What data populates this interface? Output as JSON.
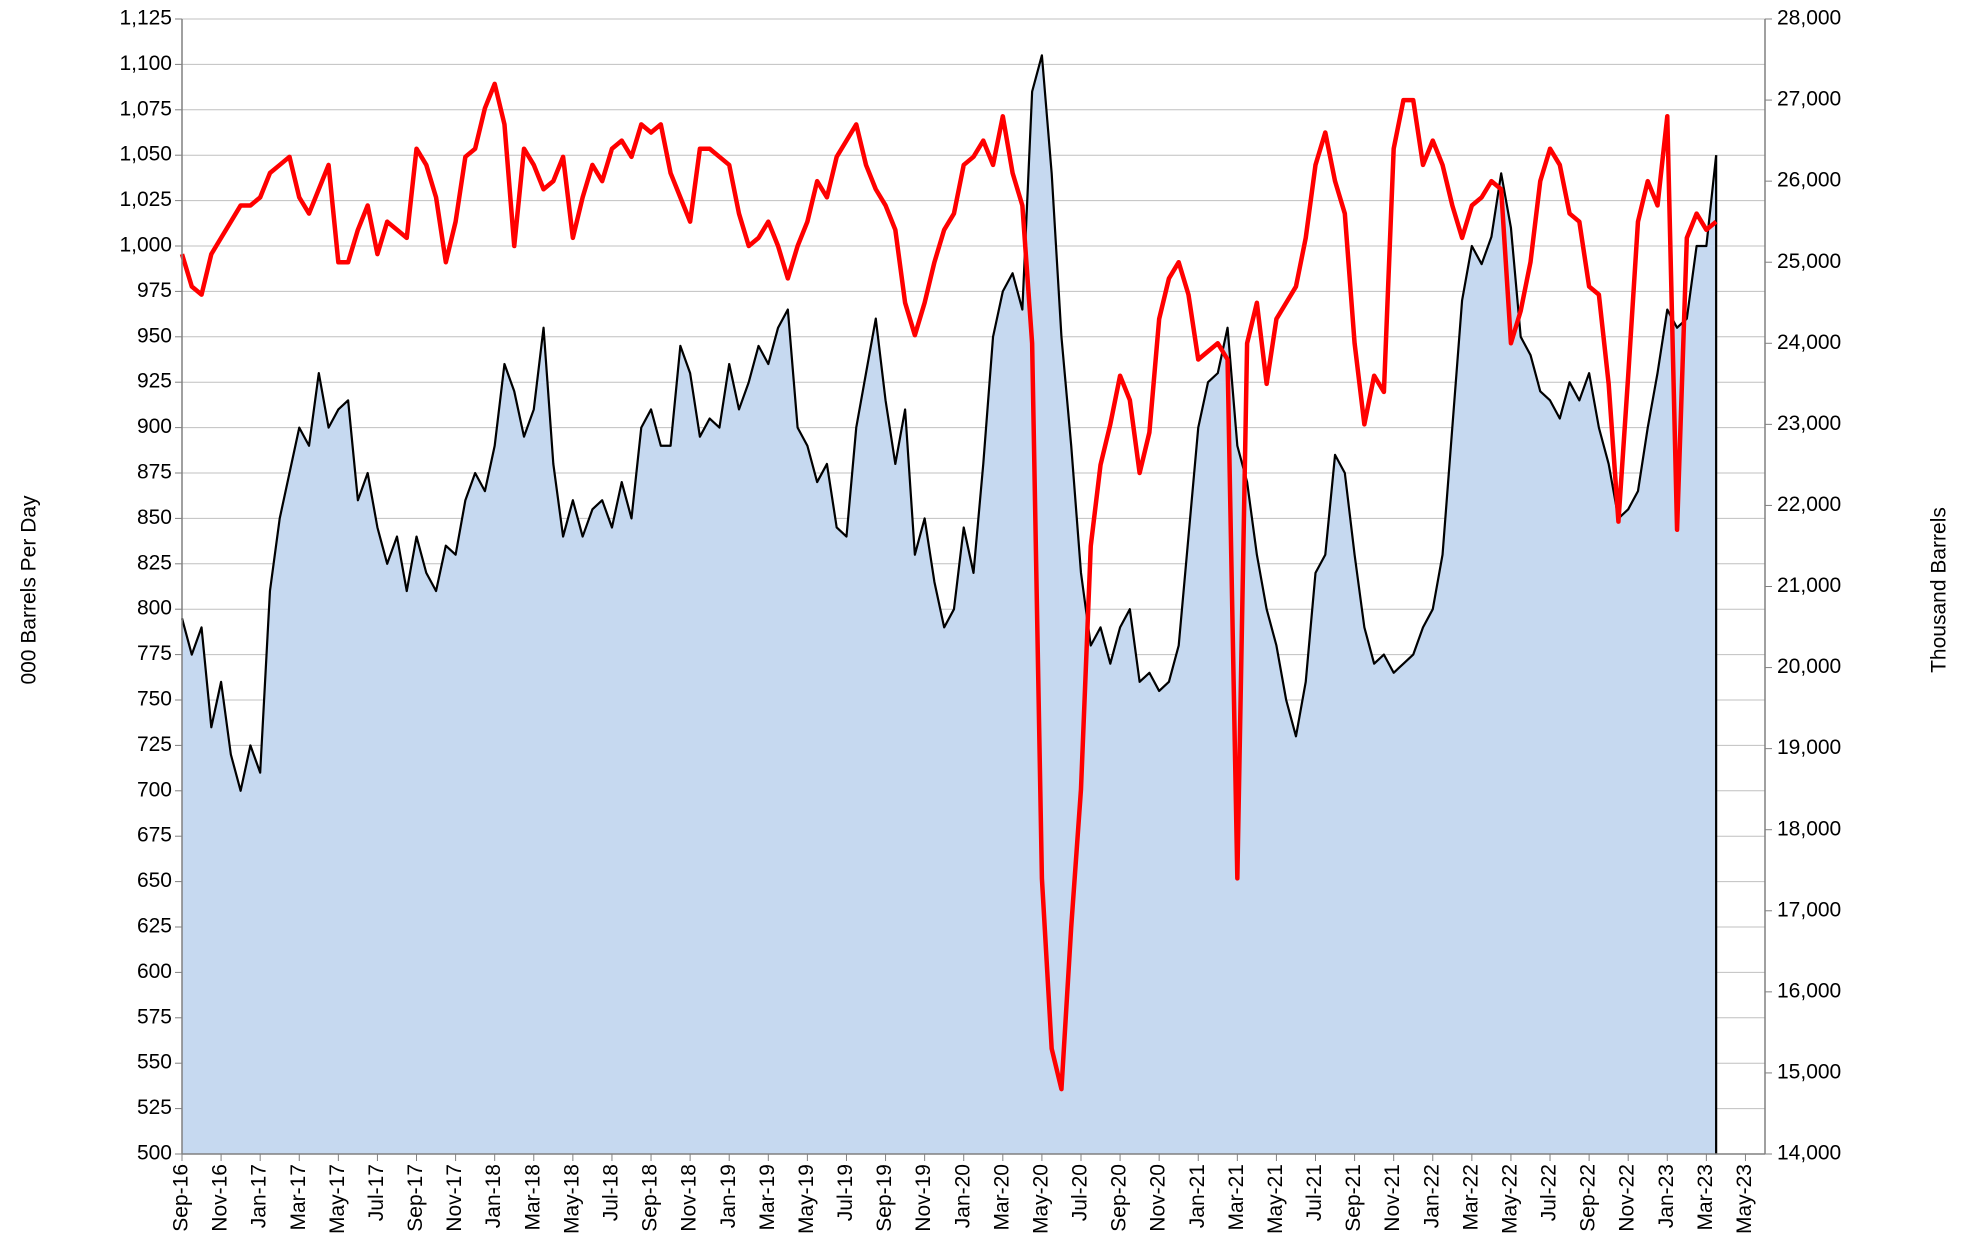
{
  "chart_data": {
    "type": "line",
    "y_label": "000 Barrels Per Day",
    "y2_label": "Thousand Barrels",
    "categories": [
      "Sep-16",
      null,
      null,
      null,
      "Nov-16",
      null,
      null,
      null,
      "Jan-17",
      null,
      null,
      null,
      "Mar-17",
      null,
      null,
      null,
      "May-17",
      null,
      null,
      null,
      "Jul-17",
      null,
      null,
      null,
      "Sep-17",
      null,
      null,
      null,
      "Nov-17",
      null,
      null,
      null,
      "Jan-18",
      null,
      null,
      null,
      "Mar-18",
      null,
      null,
      null,
      "May-18",
      null,
      null,
      null,
      "Jul-18",
      null,
      null,
      null,
      "Sep-18",
      null,
      null,
      null,
      "Nov-18",
      null,
      null,
      null,
      "Jan-19",
      null,
      null,
      null,
      "Mar-19",
      null,
      null,
      null,
      "May-19",
      null,
      null,
      null,
      "Jul-19",
      null,
      null,
      null,
      "Sep-19",
      null,
      null,
      null,
      "Nov-19",
      null,
      null,
      null,
      "Jan-20",
      null,
      null,
      null,
      "Mar-20",
      null,
      null,
      null,
      "May-20",
      null,
      null,
      null,
      "Jul-20",
      null,
      null,
      null,
      "Sep-20",
      null,
      null,
      null,
      "Nov-20",
      null,
      null,
      null,
      "Jan-21",
      null,
      null,
      null,
      "Mar-21",
      null,
      null,
      null,
      "May-21",
      null,
      null,
      null,
      "Jul-21",
      null,
      null,
      null,
      "Sep-21",
      null,
      null,
      null,
      "Nov-21",
      null,
      null,
      null,
      "Jan-22",
      null,
      null,
      null,
      "Mar-22",
      null,
      null,
      null,
      "May-22",
      null,
      null,
      null,
      "Jul-22",
      null,
      null,
      null,
      "Sep-22",
      null,
      null,
      null,
      "Nov-22",
      null,
      null,
      null,
      "Jan-23",
      null,
      null,
      null,
      "Mar-23",
      null,
      null,
      null,
      "May-23",
      null
    ],
    "series": [
      {
        "type": "area",
        "color": "#000000",
        "fill": "#c6d9f0",
        "values": [
          795,
          775,
          790,
          735,
          760,
          720,
          700,
          725,
          710,
          810,
          850,
          875,
          900,
          890,
          930,
          900,
          910,
          915,
          860,
          875,
          845,
          825,
          840,
          810,
          840,
          820,
          810,
          835,
          830,
          860,
          875,
          865,
          890,
          935,
          920,
          895,
          910,
          955,
          880,
          840,
          860,
          840,
          855,
          860,
          845,
          870,
          850,
          900,
          910,
          890,
          890,
          945,
          930,
          895,
          905,
          900,
          935,
          910,
          925,
          945,
          935,
          955,
          965,
          900,
          890,
          870,
          880,
          845,
          840,
          900,
          930,
          960,
          915,
          880,
          910,
          830,
          850,
          815,
          790,
          800,
          845,
          820,
          880,
          950,
          975,
          985,
          965,
          1085,
          1105,
          1040,
          950,
          890,
          820,
          780,
          790,
          770,
          790,
          800,
          760,
          765,
          755,
          760,
          780,
          840,
          900,
          925,
          930,
          955,
          890,
          870,
          830,
          800,
          780,
          750,
          730,
          760,
          820,
          830,
          885,
          875,
          830,
          790,
          770,
          775,
          765,
          770,
          775,
          790,
          800,
          830,
          900,
          970,
          1000,
          990,
          1005,
          1040,
          1010,
          950,
          940,
          920,
          915,
          905,
          925,
          915,
          930,
          900,
          880,
          850,
          855,
          865,
          900,
          930,
          965,
          955,
          960,
          1000,
          1000,
          1050,
          null,
          null,
          null,
          null
        ]
      },
      {
        "type": "line",
        "axis": "y2",
        "color": "#ff0000",
        "values": [
          25100,
          24700,
          24600,
          25100,
          25300,
          25500,
          25700,
          25700,
          25800,
          26100,
          26200,
          26300,
          25800,
          25600,
          25900,
          26200,
          25000,
          25000,
          25400,
          25700,
          25100,
          25500,
          25400,
          25300,
          26400,
          26200,
          25800,
          25000,
          25500,
          26300,
          26400,
          26900,
          27200,
          26700,
          25200,
          26400,
          26200,
          25900,
          26000,
          26300,
          25300,
          25800,
          26200,
          26000,
          26400,
          26500,
          26300,
          26700,
          26600,
          26700,
          26100,
          25800,
          25500,
          26400,
          26400,
          26300,
          26200,
          25600,
          25200,
          25300,
          25500,
          25200,
          24800,
          25200,
          25500,
          26000,
          25800,
          26300,
          26500,
          26700,
          26200,
          25900,
          25700,
          25400,
          24500,
          24100,
          24500,
          25000,
          25400,
          25600,
          26200,
          26300,
          26500,
          26200,
          26800,
          26100,
          25700,
          24000,
          17400,
          15300,
          14800,
          16800,
          18500,
          21500,
          22500,
          23000,
          23600,
          23300,
          22400,
          22900,
          24300,
          24800,
          25000,
          24600,
          23800,
          23900,
          24000,
          23800,
          17400,
          24000,
          24500,
          23500,
          24300,
          24500,
          24700,
          25300,
          26200,
          26600,
          26000,
          25600,
          24000,
          23000,
          23600,
          23400,
          26400,
          27000,
          27000,
          26200,
          26500,
          26200,
          25700,
          25300,
          25700,
          25800,
          26000,
          25900,
          24000,
          24400,
          25000,
          26000,
          26400,
          26200,
          25600,
          25500,
          24700,
          24600,
          23500,
          21800,
          23600,
          25500,
          26000,
          25700,
          26800,
          21700,
          25300,
          25600,
          25400,
          25500,
          null,
          null,
          null,
          null
        ]
      }
    ],
    "ylim": [
      500,
      1125
    ],
    "yticks": [
      500,
      525,
      550,
      575,
      600,
      625,
      650,
      675,
      700,
      725,
      750,
      775,
      800,
      825,
      850,
      875,
      900,
      925,
      950,
      975,
      {
        "value": 1000,
        "label": "1,000"
      },
      {
        "value": 1025,
        "label": "1,025"
      },
      {
        "value": 1050,
        "label": "1,050"
      },
      {
        "value": 1075,
        "label": "1,075"
      },
      {
        "value": 1100,
        "label": "1,100"
      },
      {
        "value": 1125,
        "label": "1,125"
      }
    ],
    "y2lim": [
      14000,
      28000
    ],
    "y2ticks": [
      {
        "value": 14000,
        "label": "14,000"
      },
      {
        "value": 15000,
        "label": "15,000"
      },
      {
        "value": 16000,
        "label": "16,000"
      },
      {
        "value": 17000,
        "label": "17,000"
      },
      {
        "value": 18000,
        "label": "18,000"
      },
      {
        "value": 19000,
        "label": "19,000"
      },
      {
        "value": 20000,
        "label": "20,000"
      },
      {
        "value": 21000,
        "label": "21,000"
      },
      {
        "value": 22000,
        "label": "22,000"
      },
      {
        "value": 23000,
        "label": "23,000"
      },
      {
        "value": 24000,
        "label": "24,000"
      },
      {
        "value": 25000,
        "label": "25,000"
      },
      {
        "value": 26000,
        "label": "26,000"
      },
      {
        "value": 27000,
        "label": "27,000"
      },
      {
        "value": 28000,
        "label": "28,000"
      }
    ],
    "grid": true
  }
}
